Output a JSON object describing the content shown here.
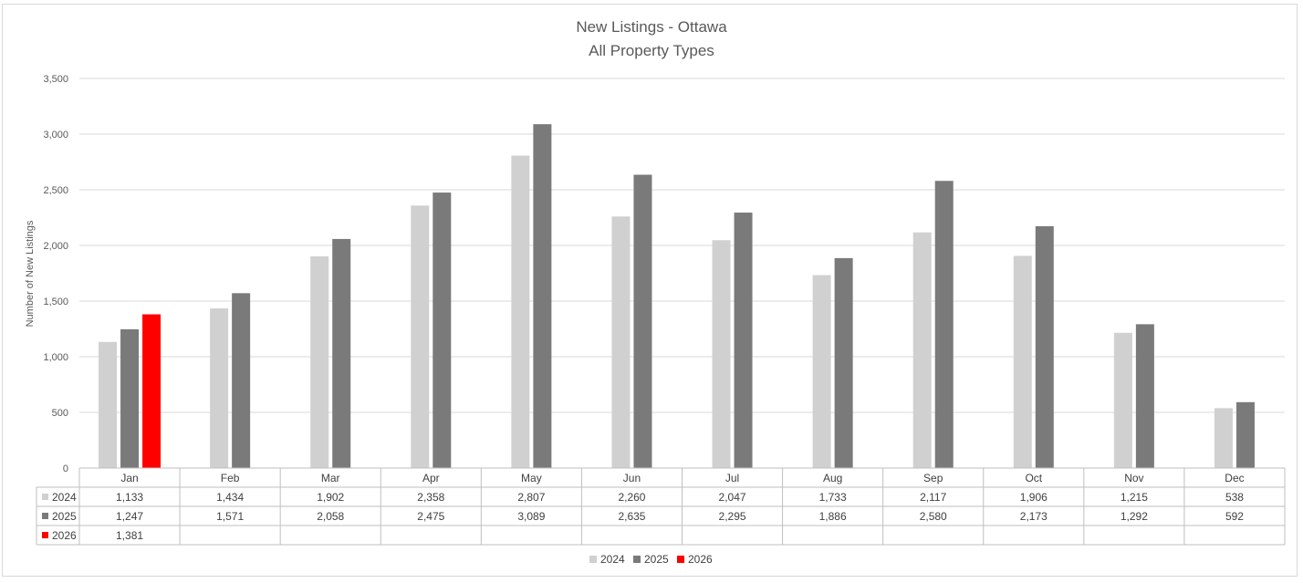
{
  "chart_data": {
    "type": "bar",
    "title": "New Listings - Ottawa",
    "subtitle": "All Property Types",
    "xlabel": "",
    "ylabel": "Number of New Listings",
    "ylim": [
      0,
      3500
    ],
    "yticks": [
      0,
      500,
      1000,
      1500,
      2000,
      2500,
      3000,
      3500
    ],
    "ytick_labels": [
      "0",
      "500",
      "1,000",
      "1,500",
      "2,000",
      "2,500",
      "3,000",
      "3,500"
    ],
    "grid": true,
    "legend_position": "bottom",
    "data_table": true,
    "categories": [
      "Jan",
      "Feb",
      "Mar",
      "Apr",
      "May",
      "Jun",
      "Jul",
      "Aug",
      "Sep",
      "Oct",
      "Nov",
      "Dec"
    ],
    "series": [
      {
        "name": "2024",
        "color": "#d0d0d0",
        "values": [
          1133,
          1434,
          1902,
          2358,
          2807,
          2260,
          2047,
          1733,
          2117,
          1906,
          1215,
          538
        ],
        "labels": [
          "1,133",
          "1,434",
          "1,902",
          "2,358",
          "2,807",
          "2,260",
          "2,047",
          "1,733",
          "2,117",
          "1,906",
          "1,215",
          "538"
        ]
      },
      {
        "name": "2025",
        "color": "#7a7a7a",
        "values": [
          1247,
          1571,
          2058,
          2475,
          3089,
          2635,
          2295,
          1886,
          2580,
          2173,
          1292,
          592
        ],
        "labels": [
          "1,247",
          "1,571",
          "2,058",
          "2,475",
          "3,089",
          "2,635",
          "2,295",
          "1,886",
          "2,580",
          "2,173",
          "1,292",
          "592"
        ]
      },
      {
        "name": "2026",
        "color": "#ff0000",
        "values": [
          1381,
          null,
          null,
          null,
          null,
          null,
          null,
          null,
          null,
          null,
          null,
          null
        ],
        "labels": [
          "1,381",
          "",
          "",
          "",
          "",
          "",
          "",
          "",
          "",
          "",
          "",
          ""
        ]
      }
    ]
  }
}
